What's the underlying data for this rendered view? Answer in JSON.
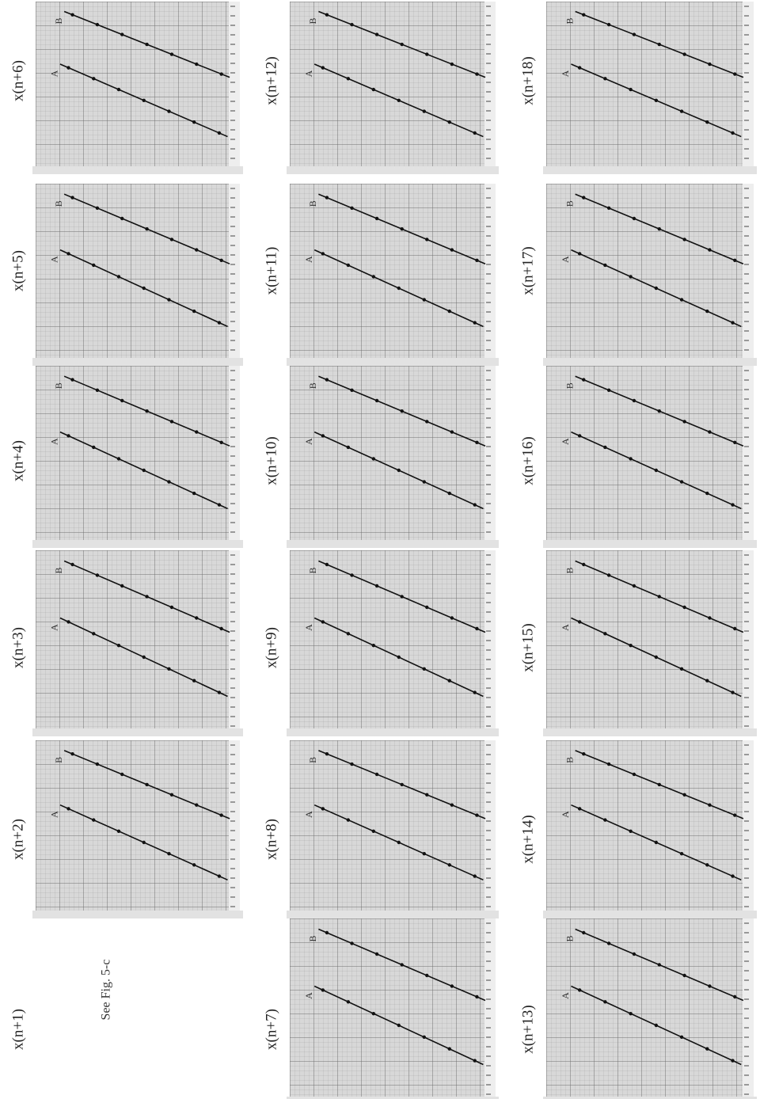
{
  "figure": {
    "panels": [
      {
        "label": "x(n+1)",
        "note": "See Fig. 5-c"
      },
      {
        "label": "x(n+2)",
        "lines": [
          "A",
          "B"
        ]
      },
      {
        "label": "x(n+3)",
        "lines": [
          "A",
          "B"
        ]
      },
      {
        "label": "x(n+4)",
        "lines": [
          "A",
          "B"
        ]
      },
      {
        "label": "x(n+5)",
        "lines": [
          "A",
          "B"
        ]
      },
      {
        "label": "x(n+6)",
        "lines": [
          "A",
          "B"
        ]
      },
      {
        "label": "x(n+7)",
        "lines": [
          "A",
          "B"
        ]
      },
      {
        "label": "x(n+8)",
        "lines": [
          "A",
          "B"
        ]
      },
      {
        "label": "x(n+9)",
        "lines": [
          "A",
          "B"
        ]
      },
      {
        "label": "x(n+10)",
        "lines": [
          "A",
          "B"
        ]
      },
      {
        "label": "x(n+11)",
        "lines": [
          "A",
          "B"
        ]
      },
      {
        "label": "x(n+12)",
        "lines": [
          "A",
          "B"
        ]
      },
      {
        "label": "x(n+13)",
        "lines": [
          "A",
          "B"
        ]
      },
      {
        "label": "x(n+14)",
        "lines": [
          "A",
          "B"
        ]
      },
      {
        "label": "x(n+15)",
        "lines": [
          "A",
          "B"
        ]
      },
      {
        "label": "x(n+16)",
        "lines": [
          "A",
          "B"
        ]
      },
      {
        "label": "x(n+17)",
        "lines": [
          "A",
          "B"
        ]
      },
      {
        "label": "x(n+18)",
        "lines": [
          "A",
          "B"
        ]
      }
    ]
  }
}
